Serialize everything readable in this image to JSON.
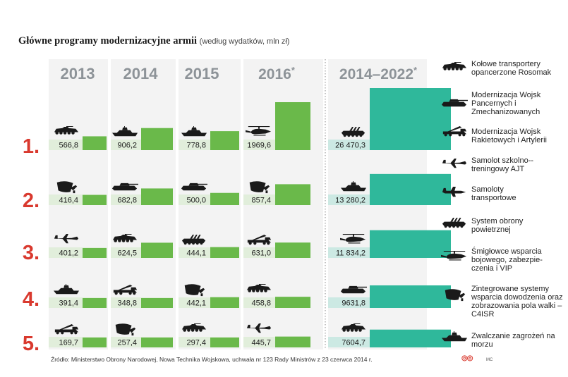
{
  "title": "Główne programy modernizacyjne armii",
  "subtitle": "(według wydatków, mln zł)",
  "source": "Źródło: Ministerstwo Obrony Narodowej, Nowa Technika Wojskowa, uchwała nr 123 Rady Ministrów z 23 czerwca 2014 r.",
  "credit": "MC",
  "colors": {
    "bar_main": "#6ab94a",
    "bar_total": "#2fb89b",
    "band_main": "#e1eedb",
    "band_total": "#cce9e3",
    "rank": "#d9392e",
    "column_bg": "#f3f3f3"
  },
  "chart_data": {
    "type": "bar",
    "title": "Główne programy modernizacyjne armii",
    "subtitle": "(według wydatków, mln zł)",
    "unit": "mln zł",
    "columns": [
      "2013",
      "2014",
      "2015",
      "2016*",
      "2014–2022*"
    ],
    "ranks": [
      "1.",
      "2.",
      "3.",
      "4.",
      "5."
    ],
    "series": [
      {
        "name": "2013",
        "values": [
          566.8,
          416.4,
          401.2,
          391.4,
          169.7
        ],
        "labels": [
          "566,8",
          "416,4",
          "401,2",
          "391,4",
          "169,7"
        ],
        "programs": [
          "rosomak",
          "c4isr",
          "ajt",
          "navy",
          "artillery"
        ]
      },
      {
        "name": "2014",
        "values": [
          906.2,
          682.8,
          624.5,
          348.8,
          257.4
        ],
        "labels": [
          "906,2",
          "682,8",
          "624,5",
          "348,8",
          "257,4"
        ],
        "programs": [
          "navy",
          "armored",
          "rosomak",
          "artillery",
          "c4isr"
        ]
      },
      {
        "name": "2015",
        "values": [
          778.8,
          500.0,
          444.1,
          442.1,
          297.4
        ],
        "labels": [
          "778,8",
          "500,0",
          "444,1",
          "442,1",
          "297,4"
        ],
        "programs": [
          "navy",
          "armored",
          "air_defense",
          "c4isr",
          "rosomak"
        ]
      },
      {
        "name": "2016*",
        "values": [
          1969.6,
          857.4,
          631.0,
          458.8,
          445.7
        ],
        "labels": [
          "1969,6",
          "857,4",
          "631,0",
          "458,8",
          "445,7"
        ],
        "programs": [
          "helicopter",
          "c4isr",
          "artillery",
          "rosomak",
          "ajt"
        ]
      },
      {
        "name": "2014–2022*",
        "values": [
          26470.3,
          13280.2,
          11834.2,
          9631.8,
          7604.7
        ],
        "labels": [
          "26 470,3",
          "13 280,2",
          "11 834,2",
          "9631,8",
          "7604,7"
        ],
        "programs": [
          "air_defense",
          "navy",
          "helicopter",
          "armored",
          "rosomak"
        ]
      }
    ],
    "legend": [
      {
        "id": "rosomak",
        "label": "Kołowe transportery opancerzone Rosomak"
      },
      {
        "id": "armored",
        "label": "Modernizacja Wojsk Pancernych i Zmechanizowanych"
      },
      {
        "id": "artillery",
        "label": "Modernizacja Wojsk Rakietowych i Artylerii"
      },
      {
        "id": "ajt",
        "label": "Samolot szkolno--treningowy AJT"
      },
      {
        "id": "transport",
        "label": "Samoloty transportowe"
      },
      {
        "id": "air_defense",
        "label": "System obrony powietrznej"
      },
      {
        "id": "helicopter",
        "label": "Śmigłowce wsparcia bojowego, zabezpie-czenia i VIP"
      },
      {
        "id": "c4isr",
        "label": "Zintegrowane systemy wsparcia dowodzenia oraz zobrazowania pola walki – C4ISR"
      },
      {
        "id": "navy",
        "label": "Zwalczanie zagrożeń na morzu"
      }
    ],
    "legend_placement": "right"
  }
}
